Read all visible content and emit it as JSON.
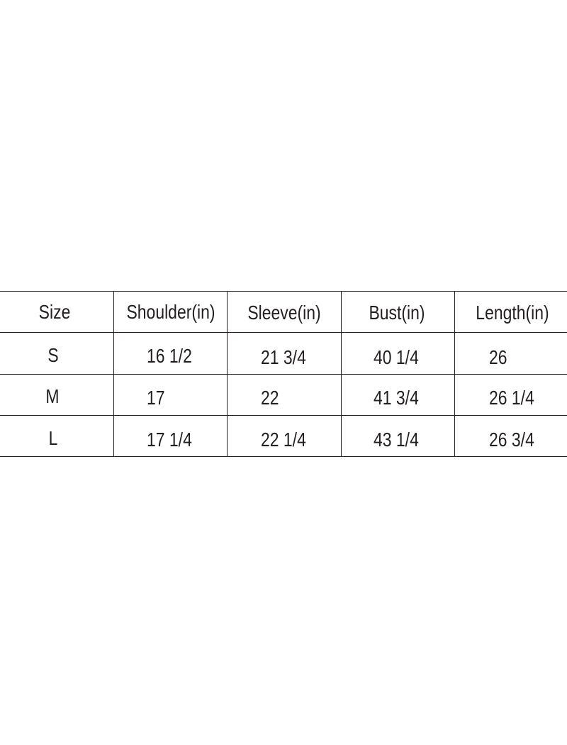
{
  "table": {
    "headers": [
      "Size",
      "Shoulder(in)",
      "Sleeve(in)",
      "Bust(in)",
      "Length(in)"
    ],
    "rows": [
      [
        "S",
        "16 1/2",
        "21 3/4",
        "40 1/4",
        "26"
      ],
      [
        "M",
        "17",
        "22",
        "41  3/4",
        "26 1/4"
      ],
      [
        "L",
        "17 1/4",
        "22 1/4",
        "43 1/4",
        "26 3/4"
      ]
    ]
  }
}
